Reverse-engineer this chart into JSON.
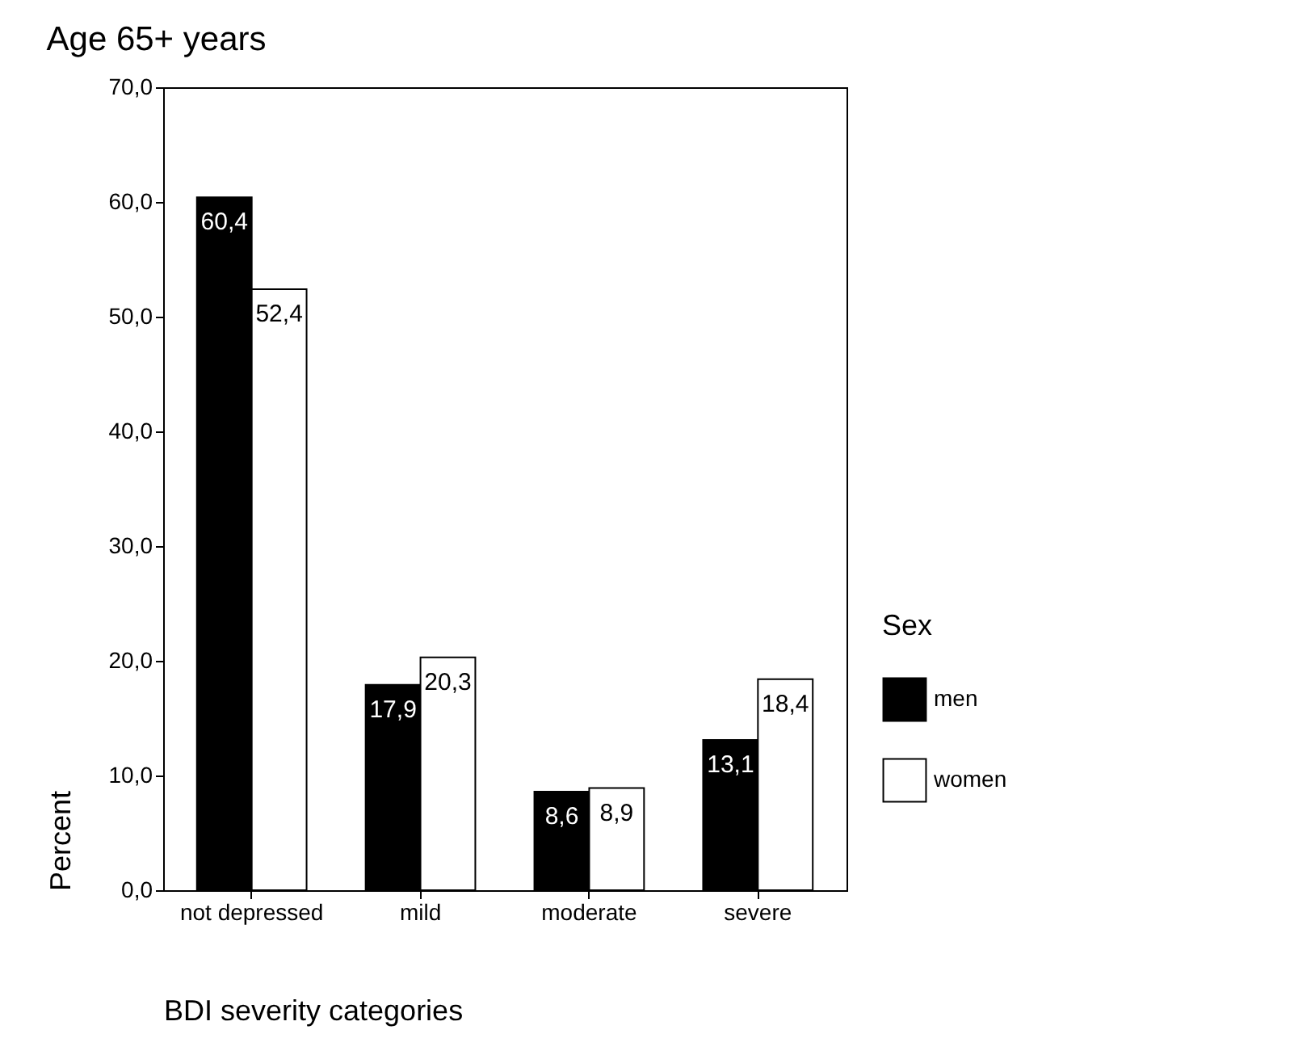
{
  "chart_data": {
    "type": "bar",
    "title": "Age 65+ years",
    "xlabel": "BDI severity categories",
    "ylabel": "Percent",
    "legend_title": "Sex",
    "categories": [
      "not depressed",
      "mild",
      "moderate",
      "severe"
    ],
    "series": [
      {
        "name": "men",
        "color": "#000000",
        "values": [
          60.4,
          17.9,
          8.6,
          13.1
        ],
        "value_labels": [
          "60,4",
          "17,9",
          "8,6",
          "13,1"
        ]
      },
      {
        "name": "women",
        "color": "#ffffff",
        "values": [
          52.4,
          20.3,
          8.9,
          18.4
        ],
        "value_labels": [
          "52,4",
          "20,3",
          "8,9",
          "18,4"
        ]
      }
    ],
    "ylim": [
      0,
      70
    ],
    "yticks": [
      {
        "value": 0,
        "label": "0,0"
      },
      {
        "value": 10,
        "label": "10,0"
      },
      {
        "value": 20,
        "label": "20,0"
      },
      {
        "value": 30,
        "label": "30,0"
      },
      {
        "value": 40,
        "label": "40,0"
      },
      {
        "value": 50,
        "label": "50,0"
      },
      {
        "value": 60,
        "label": "60,0"
      },
      {
        "value": 70,
        "label": "70,0"
      }
    ],
    "grid": false,
    "legend": "right"
  }
}
